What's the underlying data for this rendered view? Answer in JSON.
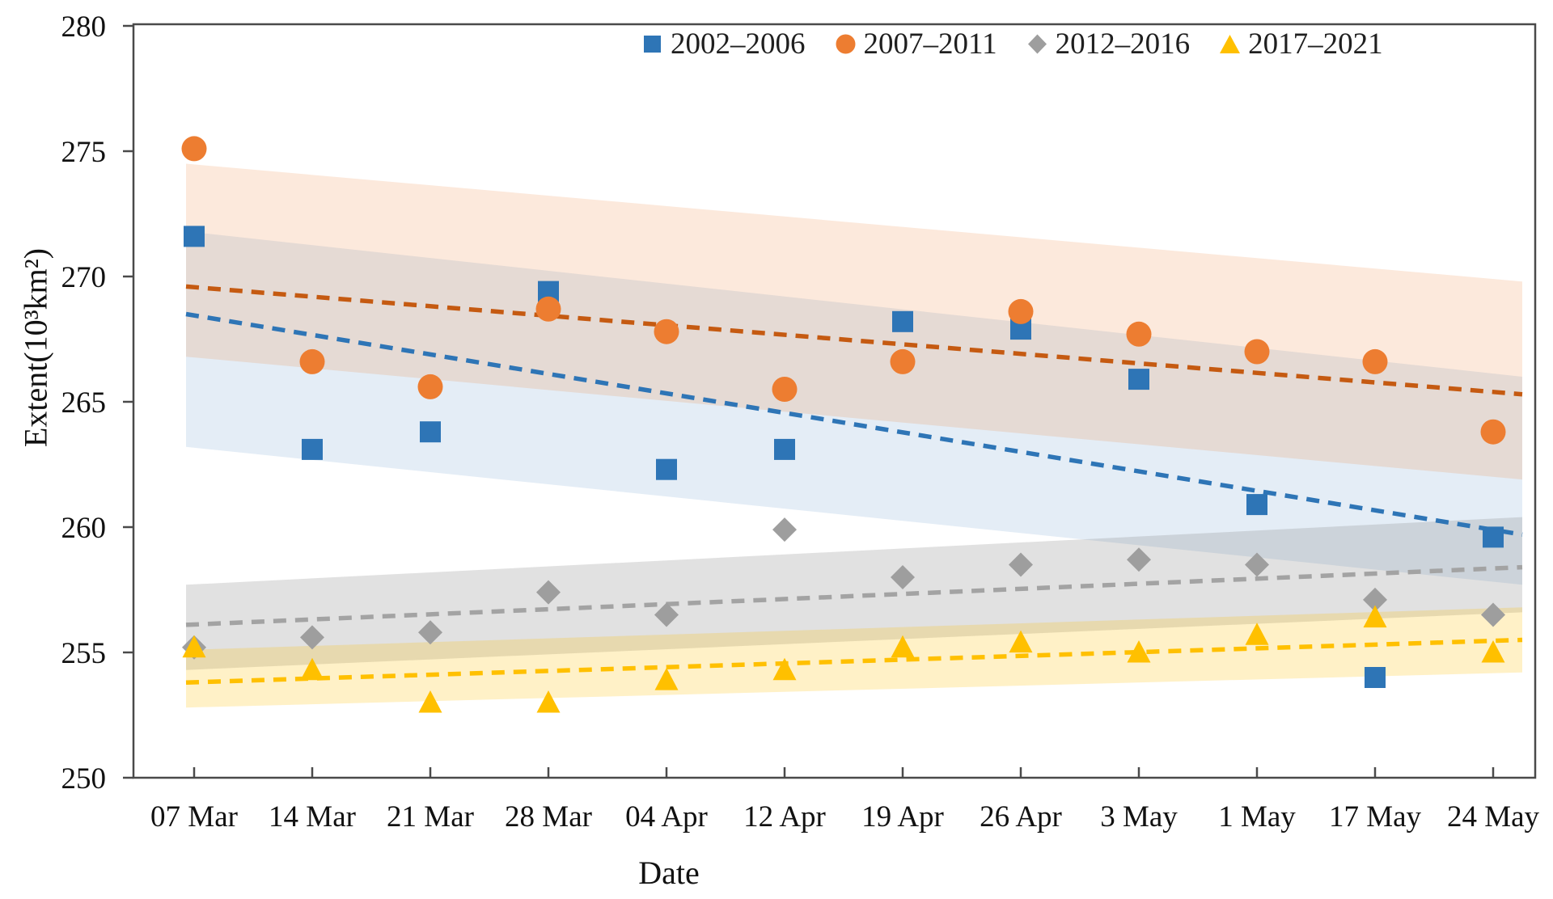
{
  "axes": {
    "y_title": "Extent(10³km²)",
    "x_title": "Date"
  },
  "chart_data": {
    "type": "scatter",
    "title": "",
    "xlabel": "Date",
    "ylabel": "Extent(10³km²)",
    "ylim": [
      250,
      280
    ],
    "y_ticks": [
      250,
      255,
      260,
      265,
      270,
      275,
      280
    ],
    "grid": false,
    "legend_position": "top-right-inside",
    "categories": [
      "07 Mar",
      "14 Mar",
      "21 Mar",
      "28 Mar",
      "04 Apr",
      "12 Apr",
      "19 Apr",
      "26 Apr",
      "3 May",
      "1 May",
      "17 May",
      "24 May"
    ],
    "series": [
      {
        "name": "2002–2006",
        "marker": "square",
        "color": "#2E75B6",
        "trend_color": "#2E75B6",
        "values": [
          271.6,
          263.1,
          263.8,
          269.4,
          262.3,
          263.1,
          268.2,
          267.9,
          265.9,
          260.9,
          254.0,
          259.6
        ],
        "trendline": {
          "start": 268.5,
          "end": 259.7
        },
        "band": {
          "top_start": 271.8,
          "top_end": 266.0,
          "bottom_start": 263.2,
          "bottom_end": 257.7,
          "fill": "rgba(46,117,182,0.13)"
        }
      },
      {
        "name": "2007–2011",
        "marker": "circle",
        "color": "#ED7D31",
        "trend_color": "#C55A11",
        "values": [
          275.1,
          266.6,
          265.6,
          268.7,
          267.8,
          265.5,
          266.6,
          268.6,
          267.7,
          267.0,
          266.6,
          263.8
        ],
        "trendline": {
          "start": 269.6,
          "end": 265.3
        },
        "band": {
          "top_start": 274.5,
          "top_end": 269.8,
          "bottom_start": 266.8,
          "bottom_end": 261.9,
          "fill": "rgba(237,125,49,0.17)"
        }
      },
      {
        "name": "2012–2016",
        "marker": "diamond",
        "color": "#9E9E9E",
        "trend_color": "#A3A3A3",
        "values": [
          255.2,
          255.6,
          255.8,
          257.4,
          256.5,
          259.9,
          258.0,
          258.5,
          258.7,
          258.5,
          257.1,
          256.5
        ],
        "trendline": {
          "start": 256.1,
          "end": 258.4
        },
        "band": {
          "top_start": 257.7,
          "top_end": 260.4,
          "bottom_start": 254.3,
          "bottom_end": 256.6,
          "fill": "rgba(128,128,128,0.24)"
        }
      },
      {
        "name": "2017–2021",
        "marker": "triangle",
        "color": "#FFC000",
        "trend_color": "#FFC000",
        "values": [
          255.2,
          254.3,
          253.0,
          253.0,
          253.9,
          254.3,
          255.2,
          255.4,
          255.0,
          255.7,
          256.4,
          255.0
        ],
        "trendline": {
          "start": 253.8,
          "end": 255.5
        },
        "band": {
          "top_start": 255.1,
          "top_end": 256.8,
          "bottom_start": 252.8,
          "bottom_end": 254.2,
          "fill": "rgba(255,192,0,0.22)"
        }
      }
    ]
  }
}
